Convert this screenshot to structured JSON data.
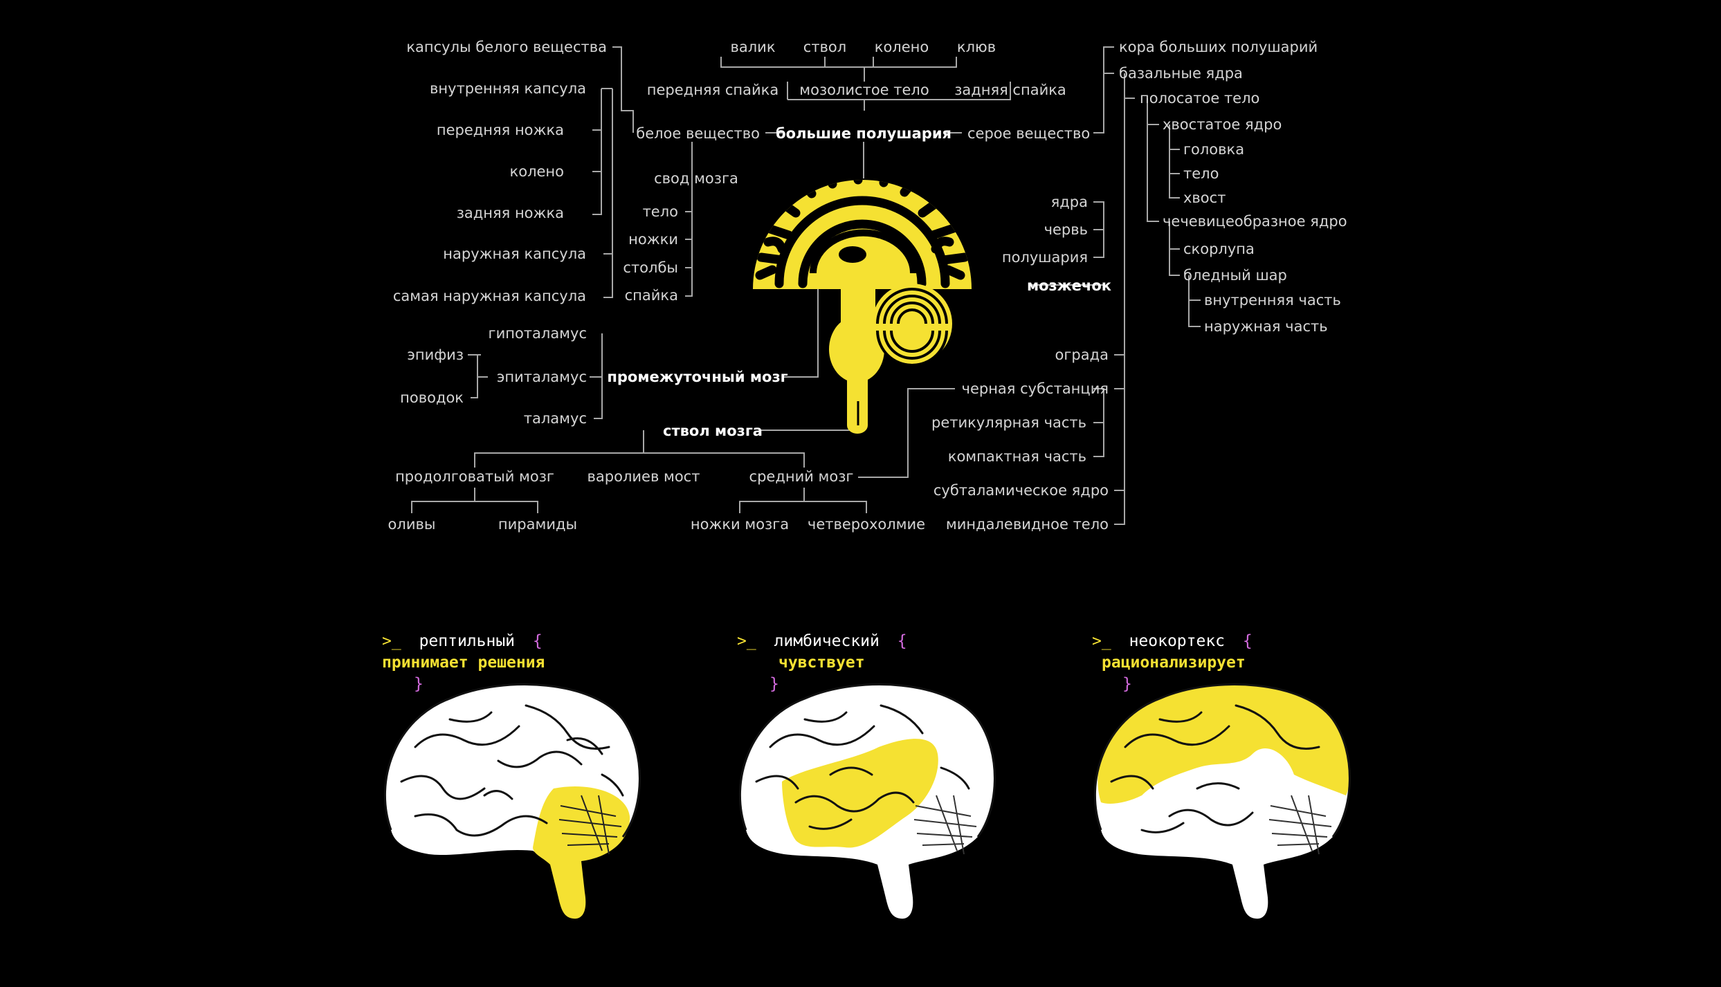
{
  "colors": {
    "background": "#000000",
    "accent": "#f5e132",
    "brace": "#d56ce0",
    "text": "#d4d4d4"
  },
  "tree": {
    "hemispheres": "большие полушария",
    "white_matter": "белое вещество",
    "gray_matter": "серое вещество",
    "callosum": {
      "top": [
        "валик",
        "ствол",
        "колено",
        "клюв"
      ],
      "middle": [
        "передняя спайка",
        "мозолистое тело",
        "задняя спайка"
      ]
    },
    "capsules": [
      "капсулы белого вещества",
      "внутренняя капсула",
      "передняя ножка",
      "колено",
      "задняя ножка",
      "наружная капсула",
      "самая наружная капсула"
    ],
    "fornix": [
      "свод мозга",
      "тело",
      "ножки",
      "столбы",
      "спайка"
    ],
    "diencephalon": {
      "title": "промежуточный мозг",
      "items": [
        "гипоталамус",
        "эпиталамус",
        "таламус"
      ],
      "epithalamus": [
        "эпифиз",
        "поводок"
      ]
    },
    "brainstem": {
      "title": "ствол мозга",
      "parts": [
        "продолговатый мозг",
        "варолиев мост",
        "средний мозг"
      ],
      "medulla": [
        "оливы",
        "пирамиды"
      ],
      "midbrain": [
        "ножки мозга",
        "четверохолмие"
      ]
    },
    "cerebellum": {
      "title": "мозжечок",
      "items": [
        "ядра",
        "червь",
        "полушария"
      ]
    },
    "gray": {
      "items": [
        "кора больших полушарий",
        "базальные ядра",
        "полосатое тело",
        "хвостатое ядро",
        "головка",
        "тело",
        "хвост",
        "чечевицеобразное ядро",
        "скорлупа",
        "бледный шар",
        "внутренняя часть",
        "наружная часть",
        "ограда",
        "черная субстанция",
        "ретикулярная часть",
        "компактная часть",
        "субталамическое ядро",
        "миндалевидное тело"
      ]
    }
  },
  "panels": [
    {
      "prompt": ">_",
      "name": "рептильный",
      "open": "{",
      "value": "принимает решения",
      "close": "}",
      "highlight": "cerebellum-brainstem"
    },
    {
      "prompt": ">_",
      "name": "лимбический",
      "open": "{",
      "value": "чувствует",
      "close": "}",
      "highlight": "limbic"
    },
    {
      "prompt": ">_",
      "name": "неокортекс",
      "open": "{",
      "value": "рационализирует",
      "close": "}",
      "highlight": "neocortex"
    }
  ]
}
